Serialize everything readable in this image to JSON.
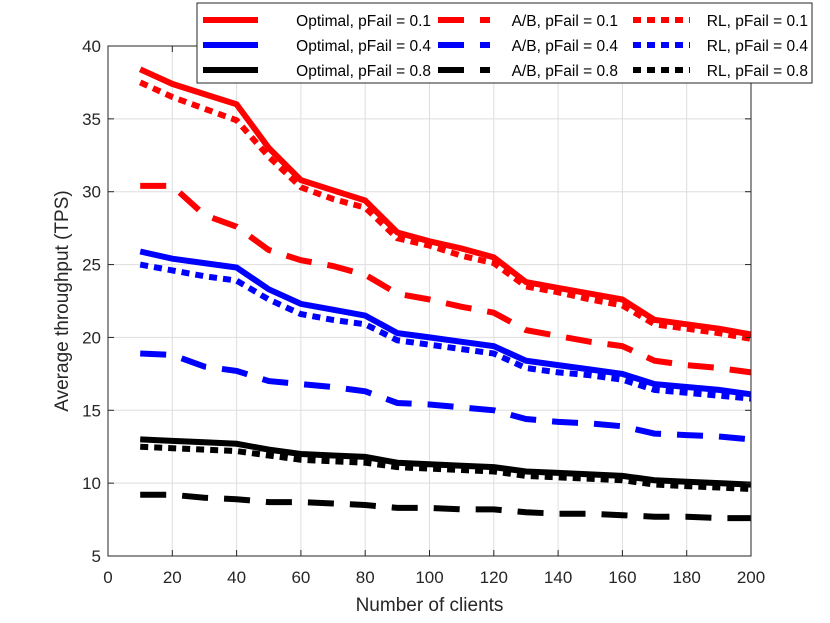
{
  "chart_data": {
    "type": "line",
    "title": "",
    "xlabel": "Number of clients",
    "ylabel": "Average throughput (TPS)",
    "xlim": [
      0,
      200
    ],
    "ylim": [
      5,
      40
    ],
    "xticks": [
      "0",
      "20",
      "40",
      "60",
      "80",
      "100",
      "120",
      "140",
      "160",
      "180",
      "200"
    ],
    "yticks": [
      "5",
      "10",
      "15",
      "20",
      "25",
      "30",
      "35",
      "40"
    ],
    "grid": true,
    "legend_position": "top-right",
    "x": [
      10,
      20,
      30,
      40,
      50,
      60,
      70,
      80,
      90,
      100,
      110,
      120,
      130,
      140,
      150,
      160,
      170,
      180,
      190,
      200
    ],
    "series": [
      {
        "name": "Optimal, pFail = 0.1",
        "color": "#ff0000",
        "style": "solid",
        "values": [
          38.4,
          37.4,
          36.7,
          36.0,
          33.0,
          30.8,
          30.1,
          29.4,
          27.2,
          26.6,
          26.1,
          25.5,
          23.8,
          23.4,
          23.0,
          22.6,
          21.2,
          20.9,
          20.6,
          20.2
        ]
      },
      {
        "name": "Optimal, pFail = 0.4",
        "color": "#0000ff",
        "style": "solid",
        "values": [
          25.9,
          25.4,
          25.1,
          24.8,
          23.3,
          22.3,
          21.9,
          21.5,
          20.3,
          20.0,
          19.7,
          19.4,
          18.4,
          18.1,
          17.8,
          17.5,
          16.8,
          16.6,
          16.4,
          16.1
        ]
      },
      {
        "name": "Optimal, pFail = 0.8",
        "color": "#000000",
        "style": "solid",
        "values": [
          13.0,
          12.9,
          12.8,
          12.7,
          12.3,
          12.0,
          11.9,
          11.8,
          11.4,
          11.3,
          11.2,
          11.1,
          10.8,
          10.7,
          10.6,
          10.5,
          10.2,
          10.1,
          10.0,
          9.9
        ]
      },
      {
        "name": "A/B, pFail = 0.1",
        "color": "#ff0000",
        "style": "dashed",
        "values": [
          30.4,
          30.4,
          28.4,
          27.6,
          26.0,
          25.3,
          24.9,
          24.3,
          23.0,
          22.6,
          22.1,
          21.7,
          20.5,
          20.1,
          19.7,
          19.4,
          18.4,
          18.1,
          17.9,
          17.6
        ]
      },
      {
        "name": "A/B, pFail = 0.4",
        "color": "#0000ff",
        "style": "dashed",
        "values": [
          18.9,
          18.8,
          18.0,
          17.7,
          17.0,
          16.8,
          16.6,
          16.3,
          15.5,
          15.4,
          15.2,
          15.0,
          14.4,
          14.2,
          14.1,
          13.9,
          13.4,
          13.3,
          13.2,
          13.0
        ]
      },
      {
        "name": "A/B, pFail = 0.8",
        "color": "#000000",
        "style": "dashed",
        "values": [
          9.2,
          9.2,
          9.0,
          8.9,
          8.7,
          8.7,
          8.6,
          8.5,
          8.3,
          8.3,
          8.2,
          8.2,
          8.0,
          7.9,
          7.9,
          7.8,
          7.7,
          7.7,
          7.6,
          7.6
        ]
      },
      {
        "name": "RL, pFail = 0.1",
        "color": "#ff0000",
        "style": "dotted",
        "values": [
          37.5,
          36.5,
          35.7,
          34.9,
          32.4,
          30.3,
          29.5,
          28.9,
          26.8,
          26.3,
          25.6,
          25.1,
          23.5,
          23.1,
          22.6,
          22.2,
          20.9,
          20.6,
          20.3,
          19.9
        ]
      },
      {
        "name": "RL, pFail = 0.4",
        "color": "#0000ff",
        "style": "dotted",
        "values": [
          25.0,
          24.6,
          24.2,
          23.9,
          22.6,
          21.6,
          21.2,
          20.9,
          19.8,
          19.5,
          19.2,
          18.9,
          17.9,
          17.6,
          17.4,
          17.1,
          16.4,
          16.2,
          16.0,
          15.8
        ]
      },
      {
        "name": "RL, pFail = 0.8",
        "color": "#000000",
        "style": "dotted",
        "values": [
          12.5,
          12.4,
          12.3,
          12.2,
          11.9,
          11.6,
          11.5,
          11.4,
          11.1,
          11.0,
          10.9,
          10.8,
          10.5,
          10.4,
          10.3,
          10.2,
          9.9,
          9.8,
          9.7,
          9.6
        ]
      }
    ]
  }
}
